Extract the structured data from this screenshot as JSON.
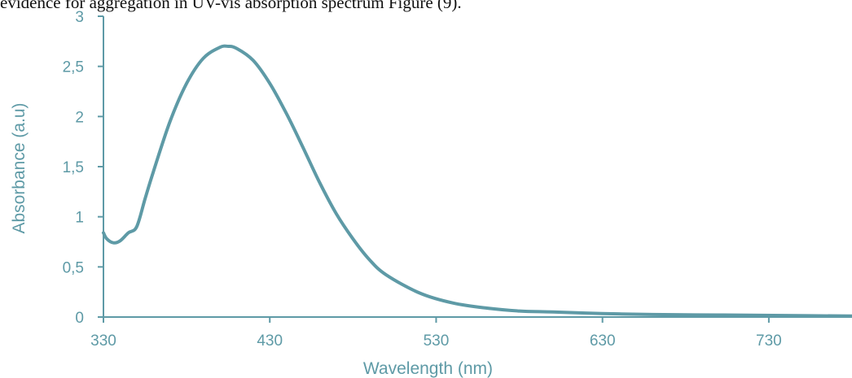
{
  "caption": "evidence for aggregation in UV-vis absorption spectrum Figure (9).",
  "colors": {
    "axis": "#5e9aa6",
    "curve": "#5e9aa6",
    "text": "#5e9aa6"
  },
  "chart_data": {
    "type": "line",
    "title": "",
    "xlabel": "Wavelength (nm)",
    "ylabel": "Absorbance (a.u)",
    "xlim": [
      330,
      780
    ],
    "ylim": [
      0,
      3
    ],
    "x_ticks": [
      330,
      430,
      530,
      630,
      730
    ],
    "x_tick_labels": [
      "330",
      "430",
      "530",
      "630",
      "730"
    ],
    "y_ticks": [
      0,
      0.5,
      1,
      1.5,
      2,
      2.5,
      3
    ],
    "y_tick_labels": [
      "0",
      "0,5",
      "1",
      "1,5",
      "2",
      "2,5",
      "3"
    ],
    "grid": false,
    "series": [
      {
        "x": [
          330,
          332,
          336,
          340,
          345,
          350,
          355,
          360,
          370,
          380,
          390,
          400,
          405,
          410,
          420,
          430,
          440,
          450,
          460,
          470,
          480,
          490,
          500,
          520,
          540,
          560,
          580,
          600,
          630,
          660,
          700,
          740,
          780
        ],
        "y": [
          0.84,
          0.78,
          0.74,
          0.76,
          0.84,
          0.9,
          1.18,
          1.45,
          1.95,
          2.33,
          2.58,
          2.69,
          2.7,
          2.68,
          2.56,
          2.33,
          2.03,
          1.69,
          1.34,
          1.03,
          0.78,
          0.57,
          0.42,
          0.24,
          0.14,
          0.09,
          0.06,
          0.05,
          0.035,
          0.025,
          0.02,
          0.015,
          0.01
        ]
      }
    ]
  }
}
